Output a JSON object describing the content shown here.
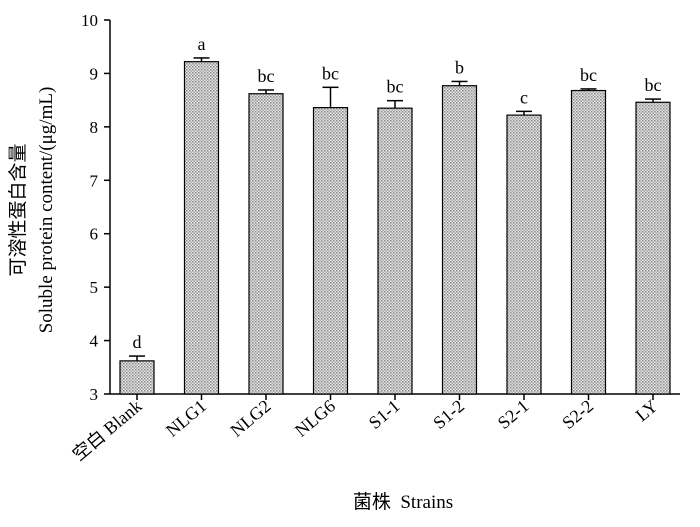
{
  "chart_data": {
    "type": "bar",
    "categories": [
      "空白 Blank",
      "NLG1",
      "NLG2",
      "NLG6",
      "S1-1",
      "S1-2",
      "S2-1",
      "S2-2",
      "LY"
    ],
    "values": [
      3.62,
      9.22,
      8.62,
      8.36,
      8.35,
      8.77,
      8.22,
      8.68,
      8.46
    ],
    "errors": [
      0.09,
      0.07,
      0.07,
      0.38,
      0.14,
      0.08,
      0.07,
      0.03,
      0.06
    ],
    "significance": [
      "d",
      "a",
      "bc",
      "bc",
      "bc",
      "b",
      "c",
      "bc",
      "bc"
    ],
    "xlabel": "菌株  Strains",
    "ylabel_line1": "可溶性蛋白含量",
    "ylabel_line2": "Soluble protein content/(μg/mL)",
    "ylim": [
      3,
      10
    ],
    "yticks": [
      3,
      4,
      5,
      6,
      7,
      8,
      9,
      10
    ],
    "grid": false,
    "bar_fill": "#c8c8c8",
    "bar_pattern": "dotted-gray"
  }
}
